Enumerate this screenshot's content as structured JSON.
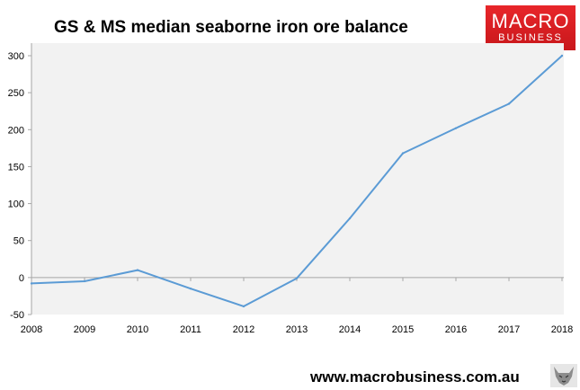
{
  "title": "GS & MS median seaborne iron ore balance",
  "logo": {
    "line1": "MACRO",
    "line2": "BUSINESS",
    "color": "#d91e22"
  },
  "footer": {
    "url": "www.macrobusiness.com.au",
    "icon": "wolf-icon"
  },
  "chart_data": {
    "type": "line",
    "title": "GS & MS median seaborne iron ore balance",
    "xlabel": "",
    "ylabel": "",
    "x": [
      2008,
      2009,
      2010,
      2011,
      2012,
      2013,
      2014,
      2015,
      2016,
      2017,
      2018
    ],
    "series": [
      {
        "values": [
          -8,
          -5,
          10,
          -15,
          -39,
          -1,
          80,
          168,
          202,
          235,
          300
        ],
        "color": "#5b9bd5"
      }
    ],
    "ylim": [
      -50,
      300
    ],
    "yticks": [
      -50,
      0,
      50,
      100,
      150,
      200,
      250,
      300
    ],
    "xticks": [
      "2008",
      "2009",
      "2010",
      "2011",
      "2012",
      "2013",
      "2014",
      "2015",
      "2016",
      "2017",
      "2018"
    ],
    "plot_background": "#f2f2f2",
    "grid": false,
    "legend": "none"
  }
}
